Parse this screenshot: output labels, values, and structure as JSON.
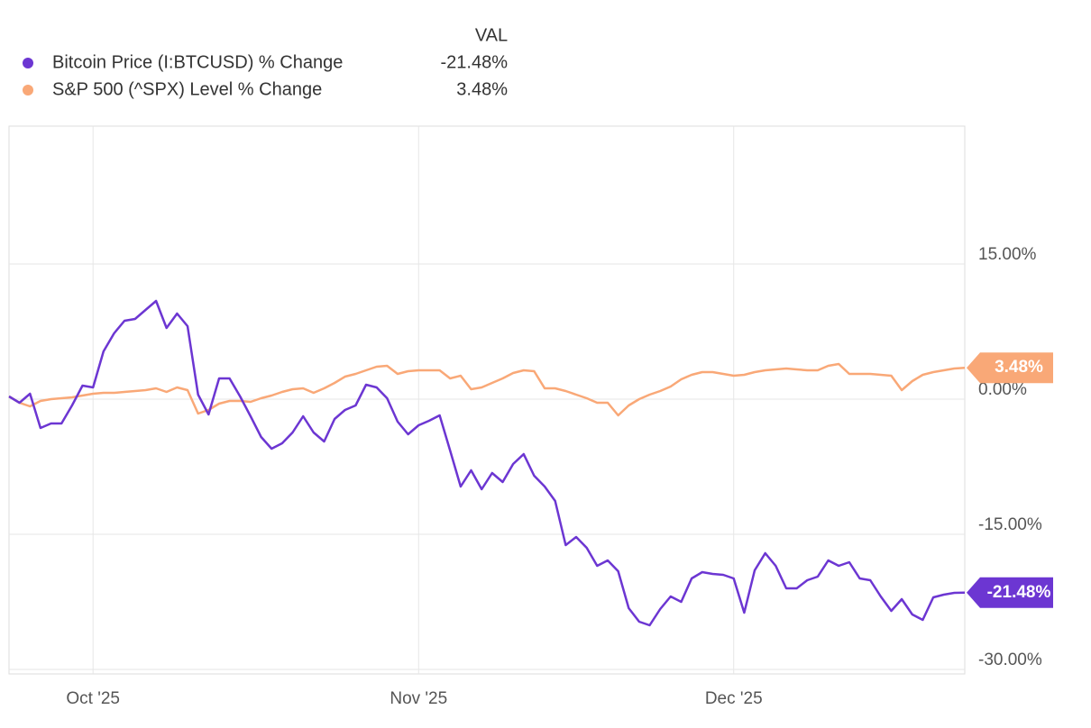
{
  "chart_data": {
    "type": "line",
    "value_header": "VAL",
    "categories": [
      null,
      null,
      null,
      null,
      null,
      null,
      null,
      null,
      "Oct '25",
      null,
      null,
      null,
      null,
      null,
      null,
      null,
      null,
      null,
      null,
      null,
      null,
      null,
      null,
      null,
      null,
      null,
      null,
      null,
      null,
      null,
      null,
      null,
      null,
      null,
      null,
      null,
      null,
      null,
      null,
      "Nov '25",
      null,
      null,
      null,
      null,
      null,
      null,
      null,
      null,
      null,
      null,
      null,
      null,
      null,
      null,
      null,
      null,
      null,
      null,
      null,
      null,
      null,
      null,
      null,
      null,
      null,
      null,
      null,
      null,
      null,
      "Dec '25",
      null,
      null,
      null,
      null,
      null,
      null,
      null,
      null,
      null,
      null,
      null,
      null,
      null,
      null,
      null,
      null,
      null,
      null,
      null,
      null,
      null,
      null
    ],
    "series": [
      {
        "name": "Bitcoin Price (I:BTCUSD) % Change",
        "color": "#6c36d2",
        "last_label": "-21.48%",
        "values": [
          0.3,
          -0.4,
          0.6,
          -3.2,
          -2.7,
          -2.7,
          -0.7,
          1.5,
          1.3,
          5.3,
          7.3,
          8.7,
          8.9,
          9.9,
          10.9,
          7.9,
          9.5,
          8.1,
          0.5,
          -1.7,
          2.3,
          2.3,
          0.3,
          -1.9,
          -4.2,
          -5.5,
          -4.9,
          -3.7,
          -1.9,
          -3.7,
          -4.7,
          -2.2,
          -1.2,
          -0.7,
          1.6,
          1.3,
          0.1,
          -2.5,
          -3.9,
          -2.9,
          -2.4,
          -1.8,
          -5.7,
          -9.7,
          -7.9,
          -10.0,
          -8.2,
          -9.2,
          -7.2,
          -6.1,
          -8.5,
          -9.7,
          -11.3,
          -16.2,
          -15.3,
          -16.5,
          -18.5,
          -17.9,
          -19.1,
          -23.2,
          -24.7,
          -25.1,
          -23.3,
          -21.9,
          -22.5,
          -19.9,
          -19.2,
          -19.4,
          -19.5,
          -19.9,
          -23.7,
          -19.0,
          -17.1,
          -18.5,
          -21.0,
          -21.0,
          -20.1,
          -19.7,
          -17.9,
          -18.5,
          -18.1,
          -19.9,
          -20.1,
          -21.9,
          -23.5,
          -22.2,
          -23.9,
          -24.5,
          -22.0,
          -21.7,
          -21.5,
          -21.48
        ]
      },
      {
        "name": "S&P 500 (^SPX) Level % Change",
        "color": "#f9a877",
        "last_label": "3.48%",
        "values": [
          0.3,
          -0.4,
          -0.8,
          -0.2,
          0.0,
          0.1,
          0.2,
          0.4,
          0.6,
          0.7,
          0.7,
          0.8,
          0.9,
          1.0,
          1.2,
          0.8,
          1.3,
          1.0,
          -1.6,
          -1.2,
          -0.5,
          -0.2,
          -0.2,
          -0.3,
          0.1,
          0.4,
          0.8,
          1.1,
          1.2,
          0.7,
          1.2,
          1.8,
          2.5,
          2.8,
          3.2,
          3.6,
          3.7,
          2.8,
          3.1,
          3.2,
          3.2,
          3.2,
          2.3,
          2.6,
          1.1,
          1.3,
          1.8,
          2.3,
          2.9,
          3.2,
          3.1,
          1.2,
          1.2,
          0.9,
          0.5,
          0.1,
          -0.4,
          -0.4,
          -1.8,
          -0.7,
          0.0,
          0.5,
          0.9,
          1.4,
          2.2,
          2.7,
          3.0,
          3.0,
          2.8,
          2.6,
          2.7,
          3.0,
          3.2,
          3.3,
          3.4,
          3.3,
          3.2,
          3.2,
          3.7,
          3.9,
          2.8,
          2.8,
          2.8,
          2.7,
          2.6,
          1.0,
          2.0,
          2.7,
          3.0,
          3.2,
          3.4,
          3.48
        ]
      }
    ],
    "ylim": [
      -30.5,
      30.3
    ],
    "yticks": [
      {
        "value": 15,
        "label": "15.00%"
      },
      {
        "value": 0,
        "label": "0.00%"
      },
      {
        "value": -15,
        "label": "-15.00%"
      },
      {
        "value": -30,
        "label": "-30.00%"
      }
    ],
    "grid": true
  }
}
